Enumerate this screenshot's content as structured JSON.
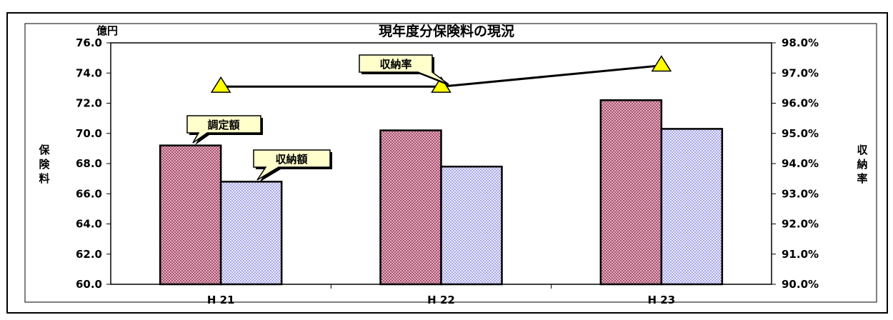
{
  "chart_data": {
    "type": "bar",
    "title": "現年度分保険料の現況",
    "categories": [
      "H 21",
      "H 22",
      "H 23"
    ],
    "y_left": {
      "label": "保険料",
      "unit": "億円",
      "min": 60.0,
      "max": 76.0,
      "step": 2.0,
      "ticks": [
        "60.0",
        "62.0",
        "64.0",
        "66.0",
        "68.0",
        "70.0",
        "72.0",
        "74.0",
        "76.0"
      ]
    },
    "y_right": {
      "label": "収納率",
      "min": 90.0,
      "max": 98.0,
      "step": 1.0,
      "ticks": [
        "90.0%",
        "91.0%",
        "92.0%",
        "93.0%",
        "94.0%",
        "95.0%",
        "96.0%",
        "97.0%",
        "98.0%"
      ]
    },
    "series": [
      {
        "name": "調定額",
        "kind": "bar",
        "axis": "left",
        "color": "#c07890",
        "values": [
          69.2,
          70.2,
          72.2
        ]
      },
      {
        "name": "収納額",
        "kind": "bar",
        "axis": "left",
        "color": "#c8c8f0",
        "values": [
          66.8,
          67.8,
          70.3
        ]
      },
      {
        "name": "収納率",
        "kind": "line",
        "axis": "right",
        "color": "#000000",
        "marker_color": "#ffff00",
        "values": [
          96.55,
          96.55,
          97.25
        ]
      }
    ],
    "grid": false
  }
}
